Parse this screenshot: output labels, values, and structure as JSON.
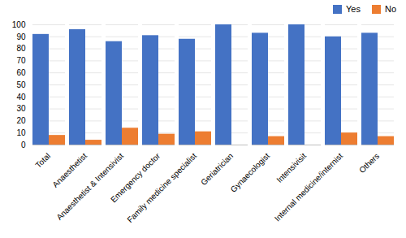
{
  "chart_data": {
    "type": "bar",
    "categories": [
      "Total",
      "Anaesthetist",
      "Anaesthetist & Intensivist",
      "Emergency doctor",
      "Family medicine specialist",
      "Geriatrician",
      "Gynaecologist",
      "Intensivisit",
      "Internal medicine/internist",
      "Others"
    ],
    "series": [
      {
        "name": "Yes",
        "color": "#4472C4",
        "values": [
          92,
          96,
          86,
          91,
          88,
          100,
          93,
          100,
          90,
          93
        ]
      },
      {
        "name": "No",
        "color": "#ED7D31",
        "values": [
          8,
          4,
          14,
          9,
          11,
          0,
          7,
          0,
          10,
          7
        ]
      }
    ],
    "ylim": [
      0,
      100
    ],
    "yticks": [
      0,
      10,
      20,
      30,
      40,
      50,
      60,
      70,
      80,
      90,
      100
    ],
    "grid": true,
    "legend": "upper right"
  }
}
